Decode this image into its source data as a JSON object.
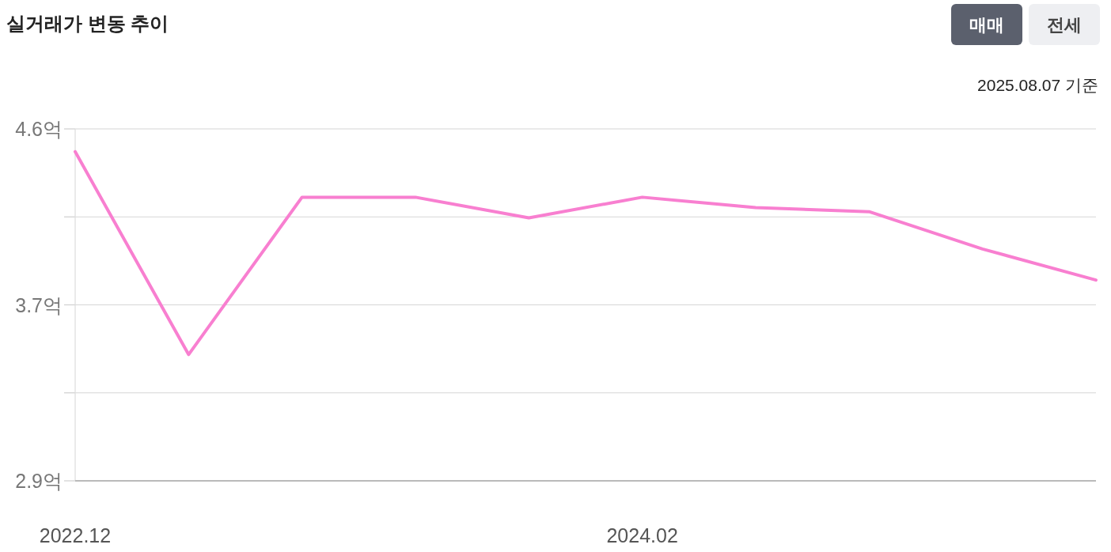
{
  "chart_data": {
    "type": "line",
    "title": "실거래가 변동 추이",
    "subtitle": "2025.08.07 기준",
    "annotations": [
      "매매",
      "전세"
    ],
    "categories": [
      "2022.12",
      null,
      null,
      null,
      null,
      "2024.02",
      null,
      null,
      null,
      null
    ],
    "series": [
      {
        "color": "#f87fd0",
        "values": [
          4.49,
          3.51,
          4.27,
          4.27,
          4.17,
          4.27,
          4.22,
          4.2,
          4.02,
          3.87
        ]
      }
    ],
    "ylim": [
      2.9,
      4.6
    ],
    "yticks": [
      {
        "value": 2.9,
        "label": "2.9억"
      },
      {
        "value": 3.325,
        "label": null
      },
      {
        "value": 3.75,
        "label": "3.7억"
      },
      {
        "value": 4.175,
        "label": null
      },
      {
        "value": 4.6,
        "label": "4.6억"
      }
    ],
    "grid": "y",
    "marker": "none",
    "line_style": "solid"
  }
}
